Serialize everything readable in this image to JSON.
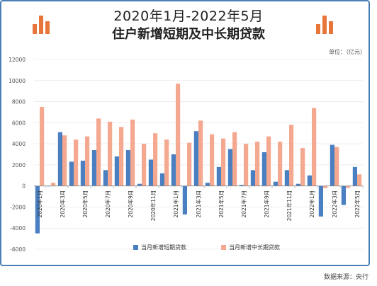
{
  "title_line1": "2020年1月-2022年5月",
  "title_line2": "住户新增短期及中长期贷款",
  "unit": "单位：（亿元）",
  "source": "数据来源：央行",
  "colors": {
    "short": "#4a7fc1",
    "long": "#f5a890",
    "frame": "#4a7fb5",
    "deco": "#e8763a"
  },
  "chart_data": {
    "type": "bar",
    "categories": [
      "2020年1月",
      "2020年2月",
      "2020年3月",
      "2020年4月",
      "2020年5月",
      "2020年6月",
      "2020年7月",
      "2020年8月",
      "2020年9月",
      "2020年10月",
      "2020年11月",
      "2020年12月",
      "2021年1月",
      "2021年2月",
      "2021年3月",
      "2021年4月",
      "2021年5月",
      "2021年6月",
      "2021年7月",
      "2021年8月",
      "2021年9月",
      "2021年10月",
      "2021年11月",
      "2021年12月",
      "2022年1月",
      "2022年2月",
      "2022年3月",
      "2022年4月",
      "2022年5月"
    ],
    "tick_labels": [
      "2020年1月",
      "2020年3月",
      "2020年5月",
      "2020年7月",
      "2020年9月",
      "2020年11月",
      "2021年1月",
      "2021年3月",
      "2021年5月",
      "2021年7月",
      "2021年9月",
      "2021年11月",
      "2022年1月",
      "2022年3月",
      "2022年5月"
    ],
    "series": [
      {
        "name": "当月新增短期贷款",
        "values": [
          -4500,
          0,
          5100,
          2300,
          2400,
          3400,
          1500,
          2800,
          3400,
          200,
          2500,
          1200,
          3000,
          -2700,
          5200,
          300,
          1800,
          3500,
          100,
          1500,
          3200,
          400,
          1500,
          200,
          1000,
          -2900,
          3900,
          -1800,
          1800
        ]
      },
      {
        "name": "当月新增中长期贷款",
        "values": [
          7500,
          300,
          4800,
          4400,
          4700,
          6400,
          6100,
          5600,
          6300,
          4000,
          5000,
          4400,
          9700,
          4100,
          6200,
          4900,
          4500,
          5100,
          4000,
          4200,
          4700,
          4200,
          5800,
          3600,
          7400,
          -200,
          3700,
          -200,
          1100
        ]
      }
    ],
    "yticks": [
      12000,
      10000,
      8000,
      6000,
      4000,
      2000,
      0,
      -2000,
      -4000,
      -6000
    ],
    "ylim": [
      -6000,
      12000
    ]
  }
}
